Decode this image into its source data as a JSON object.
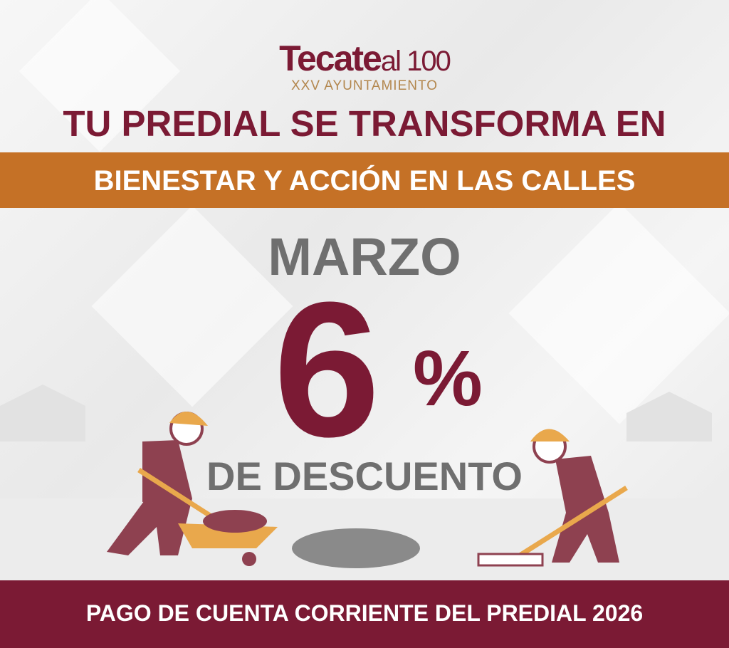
{
  "logo": {
    "main": "Tecate",
    "suffix": "al 100",
    "subtitle": "XXV AYUNTAMIENTO"
  },
  "headline": "TU PREDIAL SE TRANSFORMA EN",
  "band_text": "BIENESTAR Y ACCIÓN EN LAS CALLES",
  "month": "MARZO",
  "discount": {
    "value": "6",
    "sign": "%",
    "label": "DE DESCUENTO"
  },
  "footer": "PAGO DE CUENTA CORRIENTE DEL PREDIAL 2026",
  "colors": {
    "maroon": "#7b1a34",
    "orange": "#c57126",
    "gray": "#6f6f6f",
    "gold": "#b3874e"
  }
}
